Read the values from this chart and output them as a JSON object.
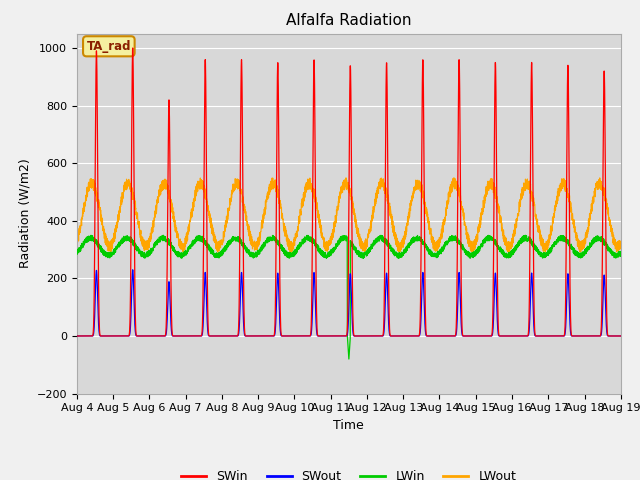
{
  "title": "Alfalfa Radiation",
  "xlabel": "Time",
  "ylabel": "Radiation (W/m2)",
  "ylim": [
    -200,
    1050
  ],
  "start_day": 4,
  "num_days": 15,
  "plot_bg": "#d8d8d8",
  "fig_bg": "#f0f0f0",
  "grid_color": "#ffffff",
  "colors": {
    "SWin": "#ff0000",
    "SWout": "#0000ff",
    "LWin": "#00cc00",
    "LWout": "#ffa500"
  },
  "sw_peaks": [
    990,
    1000,
    820,
    960,
    960,
    950,
    960,
    940,
    950,
    960,
    960,
    950,
    950,
    940,
    920
  ],
  "annotation_text": "TA_rad"
}
